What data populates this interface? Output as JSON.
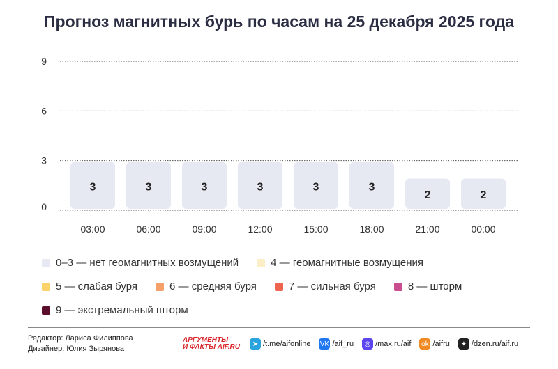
{
  "title": "Прогноз магнитных бурь по часам на 25 декабря 2025 года",
  "chart_data": {
    "type": "bar",
    "title": "Прогноз магнитных бурь по часам на 25 декабря 2025 года",
    "categories": [
      "03:00",
      "06:00",
      "09:00",
      "12:00",
      "15:00",
      "18:00",
      "21:00",
      "00:00"
    ],
    "values": [
      3,
      3,
      3,
      3,
      3,
      3,
      2,
      2
    ],
    "yticks": [
      0,
      3,
      6,
      9
    ],
    "ylim": [
      0,
      9
    ],
    "grid": true,
    "bar_color": "#e6e9f2"
  },
  "legend": [
    {
      "label": "0–3 — нет геомагнитных возмущений",
      "color": "#e6e9f2"
    },
    {
      "label": "4 — геомагнитные возмущения",
      "color": "#fcefc7"
    },
    {
      "label": "5 — слабая буря",
      "color": "#fcd36b"
    },
    {
      "label": "6 — средняя буря",
      "color": "#f7a06a"
    },
    {
      "label": "7 — сильная буря",
      "color": "#ef6450"
    },
    {
      "label": "8 — шторм",
      "color": "#c94d8f"
    },
    {
      "label": "9 — экстремальный шторм",
      "color": "#5b0d2c"
    }
  ],
  "credits": {
    "editor": "Редактор: Лариса Филиппова",
    "designer": "Дизайнер: Юлия Зырянова"
  },
  "logo": {
    "line1": "АРГУМЕНТЫ",
    "line2": "И ФАКТЫ AIF.RU"
  },
  "social": [
    {
      "icon": "telegram-icon",
      "label": "/t.me/aifonline",
      "color": "#2aa3de",
      "glyph": "➤"
    },
    {
      "icon": "vk-icon",
      "label": "/aif_ru",
      "color": "#1f77f2",
      "glyph": "VK"
    },
    {
      "icon": "max-icon",
      "label": "/max.ru/aif",
      "color": "#5a45f0",
      "glyph": "◎"
    },
    {
      "icon": "ok-icon",
      "label": "/aifru",
      "color": "#f08a24",
      "glyph": "ok"
    },
    {
      "icon": "dzen-icon",
      "label": "/dzen.ru/aif.ru",
      "color": "#222222",
      "glyph": "✦"
    }
  ]
}
